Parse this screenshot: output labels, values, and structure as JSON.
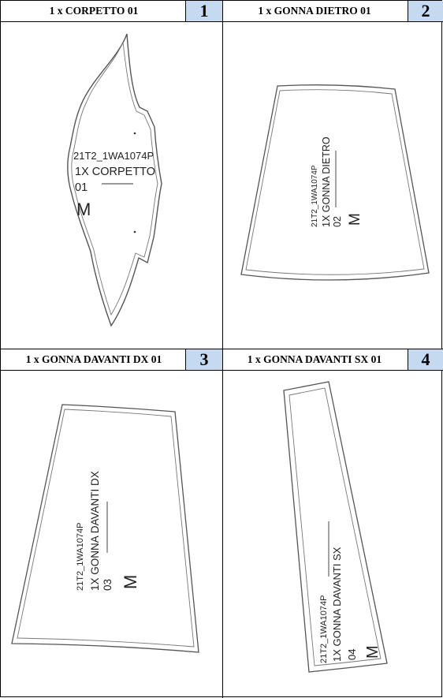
{
  "pieces": [
    {
      "title": "1 x CORPETTO 01",
      "number": "1",
      "label": {
        "code": "21T2_1WA1074P",
        "name_line1": "1X CORPETTO",
        "name_line2": "01",
        "size": "M"
      }
    },
    {
      "title": "1 x GONNA DIETRO 01",
      "number": "2",
      "label": {
        "code": "21T2_1WA1074P",
        "name": "1X GONNA DIETRO",
        "num": "02",
        "size": "M"
      }
    },
    {
      "title": "1 x GONNA DAVANTI DX 01",
      "number": "3",
      "label": {
        "code": "21T2_1WA1074P",
        "name": "1X GONNA DAVANTI DX",
        "num": "03",
        "size": "M"
      }
    },
    {
      "title": "1 x GONNA DAVANTI SX 01",
      "number": "4",
      "label": {
        "code": "21T2_1WA1074P",
        "name": "1X GONNA DAVANTI SX",
        "num": "04",
        "size": "M"
      }
    }
  ]
}
